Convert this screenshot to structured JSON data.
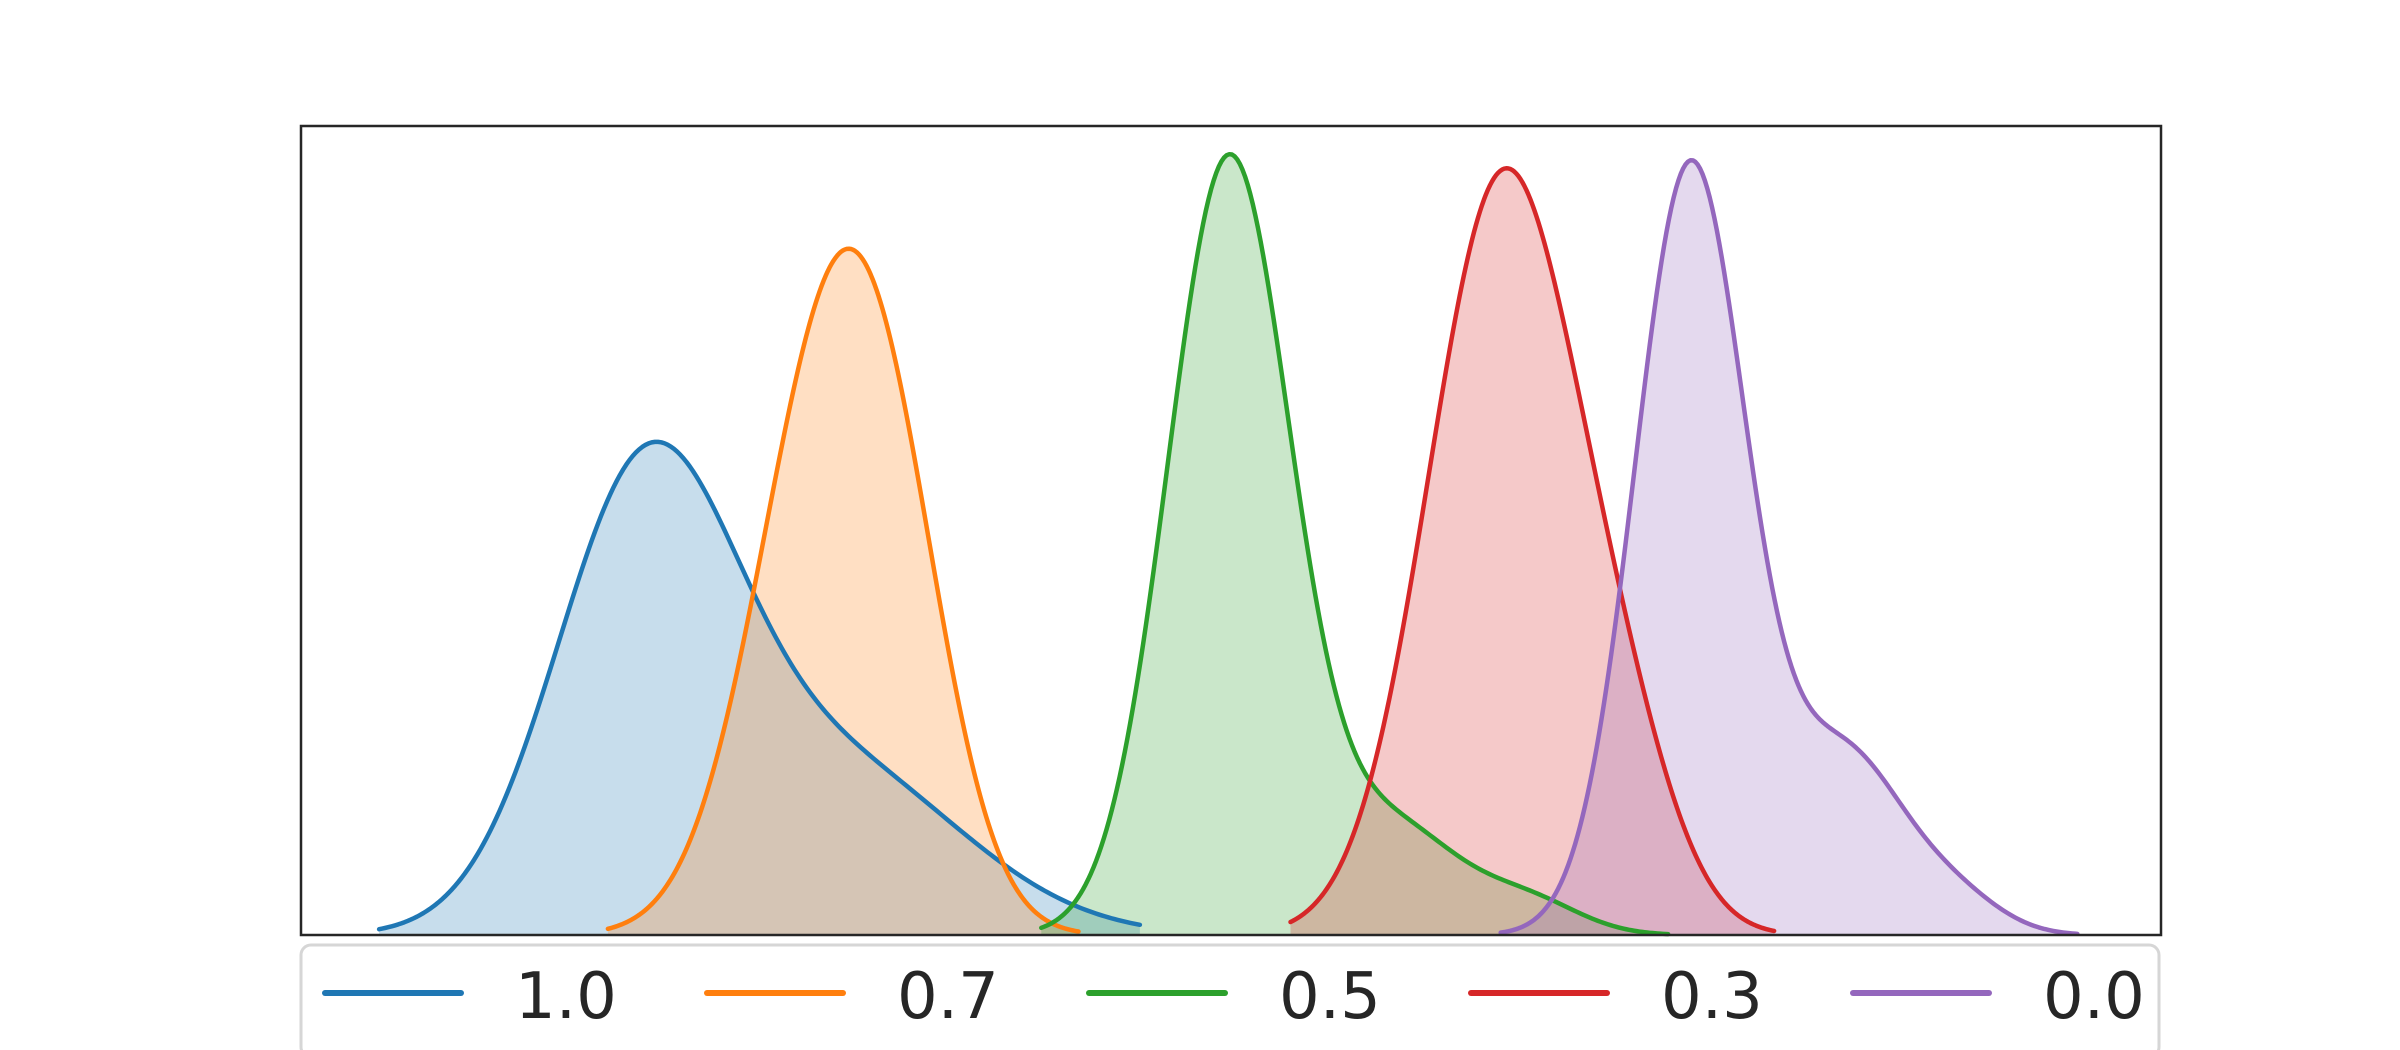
{
  "chart_data": {
    "type": "area",
    "xlabel": "",
    "ylabel": "",
    "xlim": [
      0,
      1
    ],
    "ylim": [
      0,
      1
    ],
    "grid": false,
    "legend": {
      "placement": "bottom",
      "columns": 5
    },
    "series": [
      {
        "name": "1.0",
        "color": "#1f77b4",
        "fill_opacity": 0.25,
        "components": [
          {
            "mu": 0.184,
            "sigma": 0.048,
            "weight": 0.53
          },
          {
            "mu": 0.285,
            "sigma": 0.07,
            "weight": 0.21
          }
        ],
        "range": [
          0.042,
          0.451
        ]
      },
      {
        "name": "0.7",
        "color": "#ff7f0e",
        "fill_opacity": 0.25,
        "components": [
          {
            "mu": 0.286,
            "sigma": 0.04,
            "weight": 0.74
          },
          {
            "mu": 0.322,
            "sigma": 0.03,
            "weight": 0.19
          }
        ],
        "range": [
          0.165,
          0.418
        ]
      },
      {
        "name": "0.5",
        "color": "#2ca02c",
        "fill_opacity": 0.25,
        "components": [
          {
            "mu": 0.499,
            "sigma": 0.033,
            "weight": 0.96
          },
          {
            "mu": 0.588,
            "sigma": 0.035,
            "weight": 0.13
          },
          {
            "mu": 0.66,
            "sigma": 0.028,
            "weight": 0.04
          }
        ],
        "range": [
          0.398,
          0.735
        ]
      },
      {
        "name": "0.3",
        "color": "#d62728",
        "fill_opacity": 0.25,
        "components": [
          {
            "mu": 0.646,
            "sigma": 0.04,
            "weight": 0.93
          },
          {
            "mu": 0.71,
            "sigma": 0.03,
            "weight": 0.16
          }
        ],
        "range": [
          0.532,
          0.792
        ]
      },
      {
        "name": "0.0",
        "color": "#9467bd",
        "fill_opacity": 0.25,
        "components": [
          {
            "mu": 0.747,
            "sigma": 0.03,
            "weight": 0.95
          },
          {
            "mu": 0.83,
            "sigma": 0.032,
            "weight": 0.22
          },
          {
            "mu": 0.89,
            "sigma": 0.025,
            "weight": 0.04
          }
        ],
        "range": [
          0.645,
          0.955
        ]
      }
    ]
  }
}
